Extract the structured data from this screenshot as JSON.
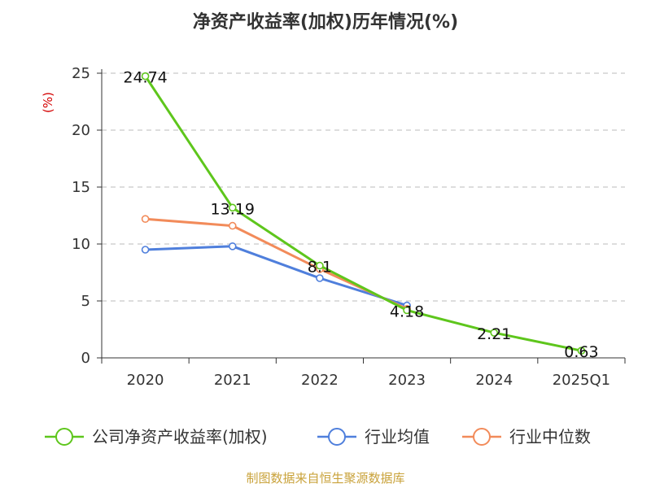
{
  "chart_data": {
    "type": "line",
    "title": "净资产收益率(加权)历年情况(%)",
    "ylabel": "(%)",
    "xlabel": "",
    "categories": [
      "2020",
      "2021",
      "2022",
      "2023",
      "2024",
      "2025Q1"
    ],
    "ylim": [
      0,
      25
    ],
    "yticks": [
      "0",
      "5",
      "10",
      "15",
      "20",
      "25"
    ],
    "grid": true,
    "legend_position": "bottom",
    "series": [
      {
        "name": "公司净资产收益率(加权)",
        "color": "#5ec61c",
        "values": [
          24.74,
          13.19,
          8.1,
          4.18,
          2.21,
          0.63
        ],
        "labels": [
          "24.74",
          "13.19",
          "8.1",
          "4.18",
          "2.21",
          "0.63"
        ]
      },
      {
        "name": "行业均值",
        "color": "#4f7fdc",
        "values": [
          9.5,
          9.8,
          7.0,
          4.6,
          null,
          null
        ]
      },
      {
        "name": "行业中位数",
        "color": "#f28b5a",
        "values": [
          12.2,
          11.6,
          7.8,
          4.3,
          null,
          null
        ]
      }
    ],
    "source": "制图数据来自恒生聚源数据库"
  }
}
